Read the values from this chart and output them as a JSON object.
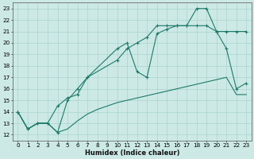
{
  "xlabel": "Humidex (Indice chaleur)",
  "xlim": [
    -0.5,
    23.5
  ],
  "ylim": [
    11.5,
    23.5
  ],
  "xticks": [
    0,
    1,
    2,
    3,
    4,
    5,
    6,
    7,
    8,
    9,
    10,
    11,
    12,
    13,
    14,
    15,
    16,
    17,
    18,
    19,
    20,
    21,
    22,
    23
  ],
  "yticks": [
    12,
    13,
    14,
    15,
    16,
    17,
    18,
    19,
    20,
    21,
    22,
    23
  ],
  "bg_color": "#cce9e5",
  "grid_color": "#aad4cf",
  "line_color": "#1e7a6a",
  "series": [
    {
      "x": [
        0,
        1,
        2,
        3,
        4,
        5,
        6,
        7,
        8,
        9,
        10,
        11,
        12,
        13,
        14,
        15,
        16,
        17,
        18,
        19,
        20,
        21,
        22,
        23
      ],
      "y": [
        14,
        12.5,
        13,
        13,
        12.2,
        12.5,
        13.2,
        13.8,
        14.2,
        14.5,
        14.8,
        15.0,
        15.2,
        15.4,
        15.6,
        15.8,
        16.0,
        16.2,
        16.4,
        16.6,
        16.8,
        17.0,
        15.5,
        15.5
      ],
      "marker": false
    },
    {
      "x": [
        0,
        1,
        2,
        3,
        4,
        5,
        6,
        7,
        10,
        11,
        12,
        13,
        14,
        15,
        16,
        17,
        18,
        19,
        20,
        21,
        22,
        23
      ],
      "y": [
        14,
        12.5,
        13,
        13,
        14.5,
        15.2,
        15.5,
        17.0,
        19.5,
        20.0,
        17.5,
        17.0,
        20.8,
        21.2,
        21.5,
        21.5,
        23.0,
        23.0,
        21.0,
        19.5,
        16.0,
        16.5
      ],
      "marker": true
    },
    {
      "x": [
        0,
        1,
        2,
        3,
        4,
        5,
        6,
        7,
        10,
        11,
        12,
        13,
        14,
        15,
        16,
        17,
        18,
        19,
        20,
        21,
        22,
        23
      ],
      "y": [
        14,
        12.5,
        13,
        13,
        12.2,
        15.0,
        16.0,
        17.0,
        18.5,
        19.5,
        20.0,
        20.5,
        21.5,
        21.5,
        21.5,
        21.5,
        21.5,
        21.5,
        21.0,
        21.0,
        21.0,
        21.0
      ],
      "marker": true
    }
  ],
  "xlabel_fontsize": 6.0,
  "tick_fontsize": 5.2
}
